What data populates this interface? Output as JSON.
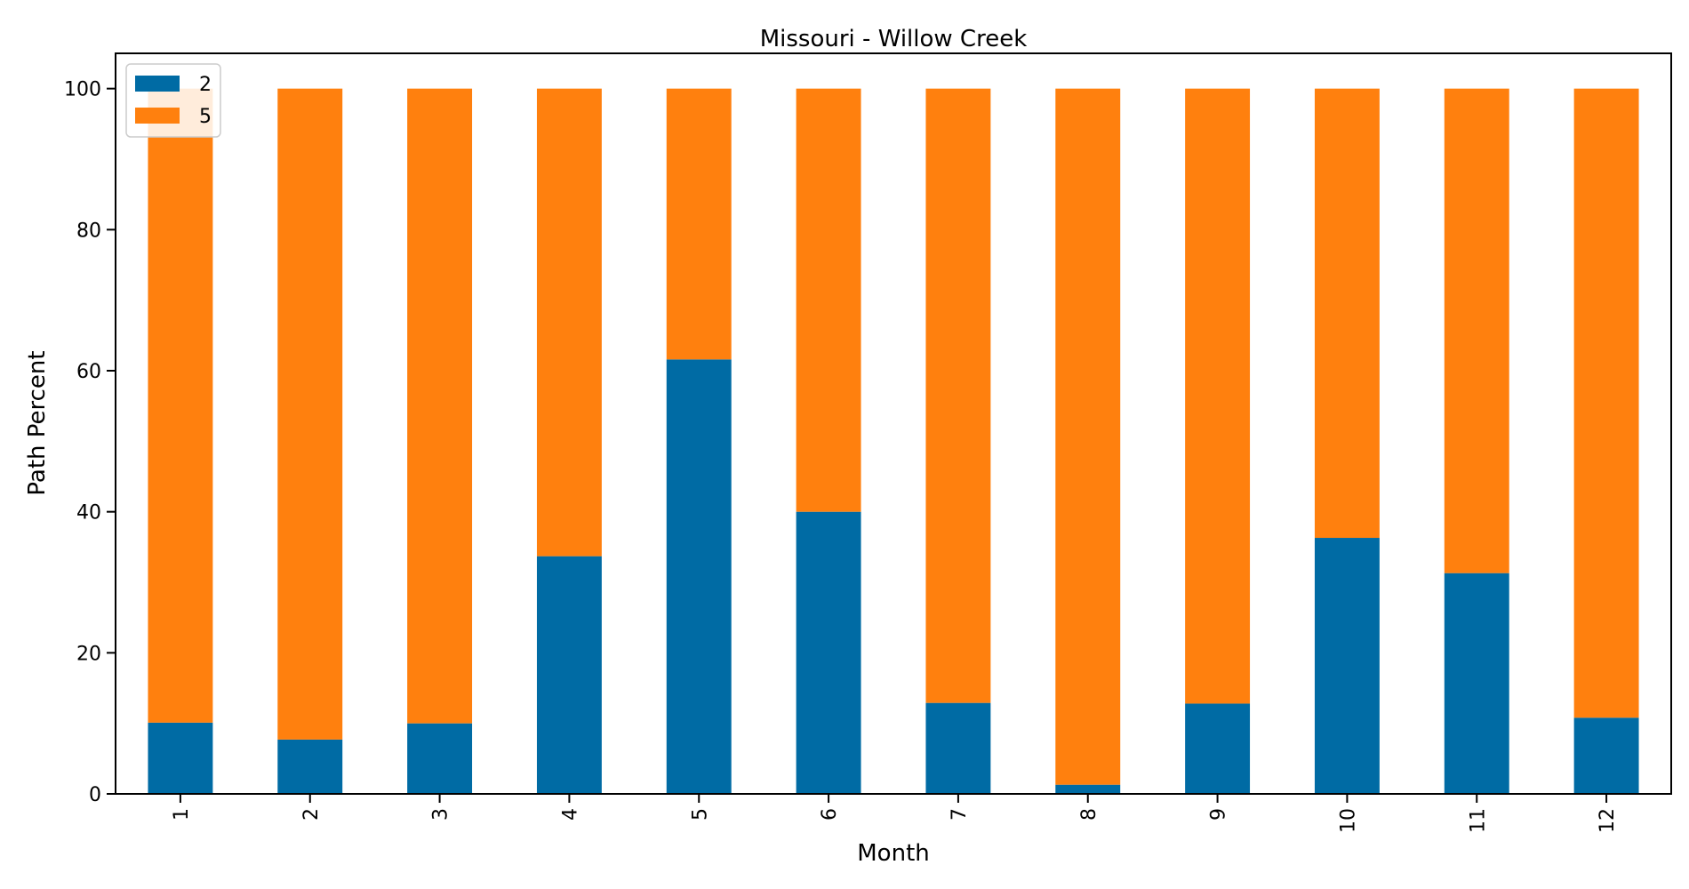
{
  "chart_data": {
    "type": "bar",
    "stacked": true,
    "title": "Missouri - Willow Creek",
    "xlabel": "Month",
    "ylabel": "Path Percent",
    "categories": [
      "1",
      "2",
      "3",
      "4",
      "5",
      "6",
      "7",
      "8",
      "9",
      "10",
      "11",
      "12"
    ],
    "series": [
      {
        "name": "2",
        "color": "#006BA4",
        "values": [
          10.1,
          7.7,
          10.0,
          33.7,
          61.6,
          40.0,
          12.9,
          1.3,
          12.8,
          36.3,
          31.3,
          10.8
        ]
      },
      {
        "name": "5",
        "color": "#FF800E",
        "values": [
          89.9,
          92.3,
          90.0,
          66.3,
          38.4,
          60.0,
          87.1,
          98.7,
          87.2,
          63.7,
          68.7,
          89.2
        ]
      }
    ],
    "ylim": [
      0,
      105
    ],
    "yticks": [
      0,
      20,
      40,
      60,
      80,
      100
    ],
    "legend_position": "top-left",
    "grid": false
  }
}
